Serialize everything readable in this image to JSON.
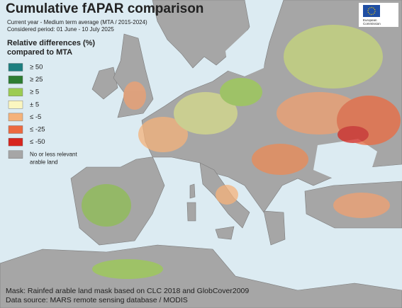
{
  "header": {
    "title": "Cumulative fAPAR comparison",
    "subtitle_lines": [
      "Current year - Medium term average (MTA / 2015-2024)",
      "Considered period: 01 June - 10 July 2025"
    ]
  },
  "legend": {
    "title_lines": [
      "Relative differences (%)",
      "compared to MTA"
    ],
    "items": [
      {
        "label_lines": [
          "≥ 50"
        ],
        "color": "#1d7f80"
      },
      {
        "label_lines": [
          "≥ 25"
        ],
        "color": "#2e7d32"
      },
      {
        "label_lines": [
          "≥ 5"
        ],
        "color": "#9ccc52"
      },
      {
        "label_lines": [
          "± 5"
        ],
        "color": "#fbf6c0"
      },
      {
        "label_lines": [
          "≤ -5"
        ],
        "color": "#f5b27a"
      },
      {
        "label_lines": [
          "≤ -25"
        ],
        "color": "#ec6a40"
      },
      {
        "label_lines": [
          "≤ -50"
        ],
        "color": "#d7261e"
      },
      {
        "label_lines": [
          "No or less relevant",
          "arable land"
        ],
        "color": "#a6a6a6"
      }
    ]
  },
  "logo": {
    "text_lines": [
      "European",
      "Commission"
    ]
  },
  "footer": {
    "lines": [
      "Mask: Rainfed arable land mask based on CLC 2018 and GlobCover2009",
      "Data source: MARS remote sensing database / MODIS"
    ]
  }
}
